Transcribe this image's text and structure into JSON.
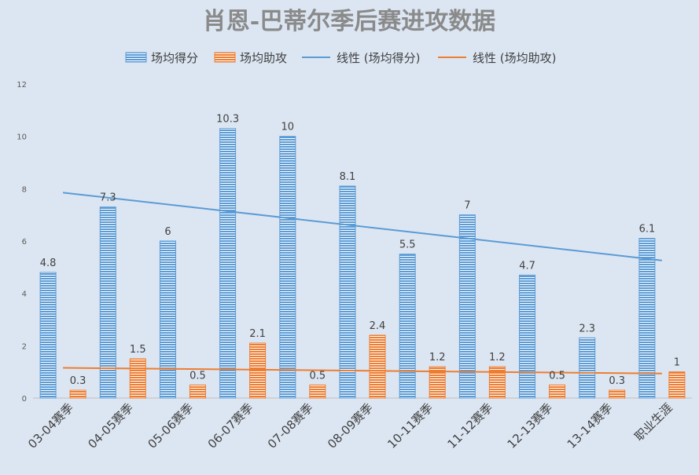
{
  "chart_data": {
    "type": "bar",
    "title": "肖恩-巴蒂尔季后赛进攻数据",
    "categories": [
      "03-04赛季",
      "04-05赛季",
      "05-06赛季",
      "06-07赛季",
      "07-08赛季",
      "08-09赛季",
      "10-11赛季",
      "11-12赛季",
      "12-13赛季",
      "13-14赛季",
      "职业生涯"
    ],
    "series": [
      {
        "name": "场均得分",
        "values": [
          4.8,
          7.3,
          6,
          10.3,
          10,
          8.1,
          5.5,
          7,
          4.7,
          2.3,
          6.1
        ],
        "color": "#5b9bd5",
        "labels": [
          "4.8",
          "7.3",
          "6",
          "10.3",
          "10",
          "8.1",
          "5.5",
          "7",
          "4.7",
          "2.3",
          "6.1"
        ]
      },
      {
        "name": "场均助攻",
        "values": [
          0.3,
          1.5,
          0.5,
          2.1,
          0.5,
          2.4,
          1.2,
          1.2,
          0.5,
          0.3,
          1
        ],
        "color": "#ed7d31",
        "labels": [
          "0.3",
          "1.5",
          "0.5",
          "2.1",
          "0.5",
          "2.4",
          "1.2",
          "1.2",
          "0.5",
          "0.3",
          "1"
        ]
      }
    ],
    "trendlines": [
      {
        "name": "线性 (场均得分)",
        "of_series": "场均得分",
        "color": "#5b9bd5"
      },
      {
        "name": "线性 (场均助攻)",
        "of_series": "场均助攻",
        "color": "#ed7d31"
      }
    ],
    "ylim": [
      0,
      12
    ],
    "yticks": [
      "0",
      "2",
      "4",
      "6",
      "8",
      "10",
      "12"
    ],
    "xlabel": "",
    "ylabel": "",
    "grid": false,
    "legend_position": "top",
    "bar_pattern": "horizontal-stripes"
  }
}
